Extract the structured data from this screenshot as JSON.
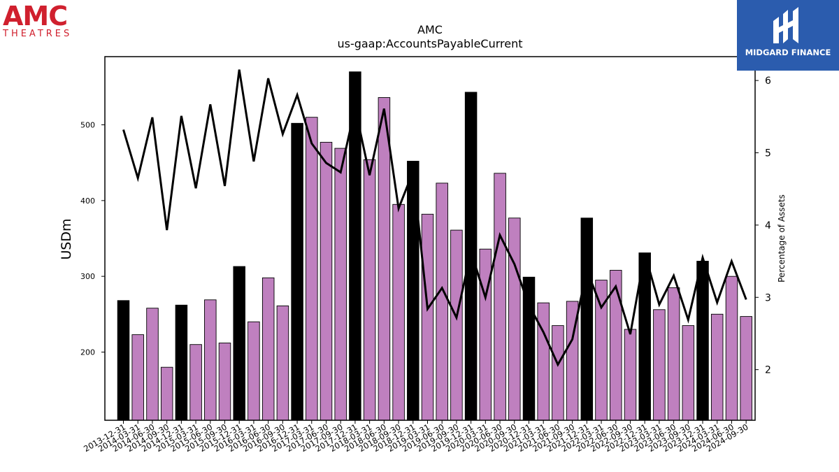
{
  "chart_data": {
    "type": "bar",
    "title": "AMC",
    "subtitle": "us-gaap:AccountsPayableCurrent",
    "ylabel": "USDm",
    "y2label": "Percentage of Assets",
    "ylim": [
      110,
      590
    ],
    "y2lim": [
      1.3,
      6.33
    ],
    "yticks": [
      200,
      300,
      400,
      500
    ],
    "y2ticks": [
      2,
      3,
      4,
      5,
      6
    ],
    "grid": false,
    "colors": {
      "bar_regular": "#bf80bf",
      "bar_highlight": "#000000",
      "line": "#000000"
    },
    "categories": [
      "2013-12-31",
      "2014-03-31",
      "2014-06-30",
      "2014-09-30",
      "2014-12-31",
      "2015-03-31",
      "2015-06-30",
      "2015-09-30",
      "2015-12-31",
      "2016-03-31",
      "2016-06-30",
      "2016-09-30",
      "2016-12-31",
      "2017-03-31",
      "2017-06-30",
      "2017-09-30",
      "2017-12-31",
      "2018-03-31",
      "2018-06-30",
      "2018-09-30",
      "2018-12-31",
      "2019-03-31",
      "2019-06-30",
      "2019-09-30",
      "2019-12-31",
      "2020-03-31",
      "2020-06-30",
      "2020-09-30",
      "2020-12-31",
      "2021-03-31",
      "2021-06-30",
      "2021-09-30",
      "2021-12-31",
      "2022-03-31",
      "2022-06-30",
      "2022-09-30",
      "2022-12-31",
      "2023-03-31",
      "2023-06-30",
      "2023-09-30",
      "2023-12-31",
      "2024-03-31",
      "2024-06-30",
      "2024-09-30"
    ],
    "series": [
      {
        "type": "bar",
        "values": [
          268,
          223,
          258,
          180,
          262,
          210,
          269,
          212,
          313,
          240,
          298,
          261,
          502,
          510,
          477,
          469,
          570,
          454,
          536,
          395,
          452,
          382,
          423,
          361,
          543,
          336,
          436,
          377,
          299,
          265,
          235,
          267,
          377,
          295,
          308,
          230,
          331,
          256,
          285,
          235,
          320,
          250,
          300,
          247
        ],
        "highlight": [
          true,
          false,
          false,
          false,
          true,
          false,
          false,
          false,
          true,
          false,
          false,
          false,
          true,
          false,
          false,
          false,
          true,
          false,
          false,
          false,
          true,
          false,
          false,
          false,
          true,
          false,
          false,
          false,
          true,
          false,
          false,
          false,
          true,
          false,
          false,
          false,
          true,
          false,
          false,
          false,
          true,
          false,
          false,
          false
        ]
      },
      {
        "type": "line",
        "axis": "right",
        "values": [
          5.32,
          4.65,
          5.49,
          3.93,
          5.51,
          4.51,
          5.67,
          4.54,
          6.15,
          4.88,
          6.03,
          5.26,
          5.8,
          5.13,
          4.86,
          4.73,
          5.62,
          4.69,
          5.61,
          4.23,
          4.74,
          2.84,
          3.13,
          2.72,
          3.63,
          3.0,
          3.86,
          3.46,
          2.89,
          2.52,
          2.07,
          2.42,
          3.38,
          2.86,
          3.15,
          2.49,
          3.61,
          2.9,
          3.3,
          2.69,
          3.55,
          2.93,
          3.5,
          2.97
        ]
      }
    ]
  },
  "logos": {
    "left_main": "AMC",
    "left_sub": "THEATRES",
    "right_text": "MIDGARD FINANCE",
    "right_icon": "midgard-m-icon"
  }
}
